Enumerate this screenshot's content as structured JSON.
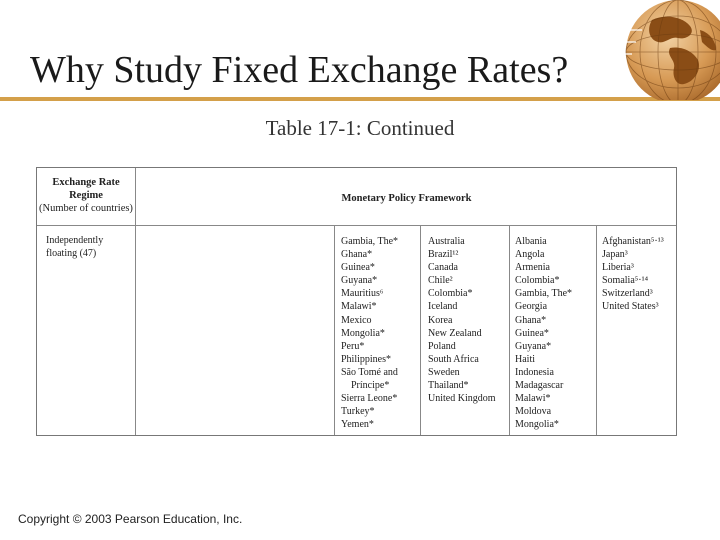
{
  "slide": {
    "title": "Why Study Fixed Exchange Rates?",
    "subtitle_bold": "Table 17-1",
    "subtitle_rest": ": Continued",
    "copyright": "Copyright © 2003 Pearson Education, Inc."
  },
  "table": {
    "header": {
      "regime_line1": "Exchange Rate",
      "regime_line2": "Regime",
      "regime_line3": "(Number of countries)",
      "framework": "Monetary Policy Framework"
    },
    "regime_name_line1": "Independently",
    "regime_name_line2": "floating (47)",
    "columns": [
      [
        "Gambia, The*",
        "Ghana*",
        "Guinea*",
        "Guyana*",
        "Mauritius⁶",
        "Malawi*",
        "Mexico",
        "Mongolia*",
        "Peru*",
        "Philippines*",
        "São Tomé and",
        "Príncipe*",
        "Sierra Leone*",
        "Turkey*",
        "Yemen*"
      ],
      [
        "Australia",
        "Brazil¹²",
        "Canada",
        "Chile²",
        "Colombia*",
        "Iceland",
        "Korea",
        "New Zealand",
        "Poland",
        "South Africa",
        "Sweden",
        "Thailand*",
        "United Kingdom"
      ],
      [
        "Albania",
        "Angola",
        "Armenia",
        "Colombia*",
        "Gambia, The*",
        "Georgia",
        "Ghana*",
        "Guinea*",
        "Guyana*",
        "Haiti",
        "Indonesia",
        "Madagascar",
        "Malawi*",
        "Moldova",
        "Mongolia*"
      ],
      [
        "Afghanistan⁵·¹³",
        "Japan³",
        "Liberia³",
        "Somalia⁵·¹⁴",
        "Switzerland³",
        "United States³"
      ]
    ]
  },
  "colors": {
    "accent": "#d4a04a",
    "globe": "#b9772f"
  }
}
